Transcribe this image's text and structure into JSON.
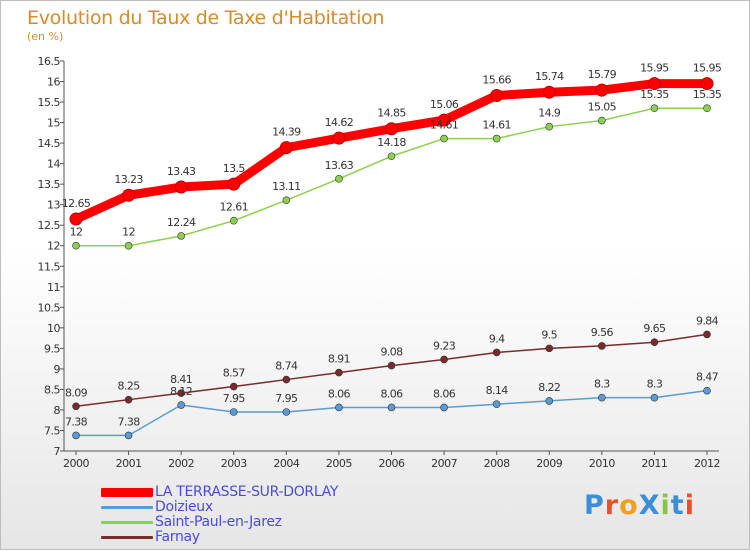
{
  "title": "Evolution du Taux de Taxe d'Habitation",
  "subtitle": "(en %)",
  "logo_text": "ProXiti",
  "chart_data": {
    "type": "line",
    "x": [
      2000,
      2001,
      2002,
      2003,
      2004,
      2005,
      2006,
      2007,
      2008,
      2009,
      2010,
      2011,
      2012
    ],
    "xlabel": "",
    "ylabel": "",
    "ylim": [
      7,
      16.5
    ],
    "yticks": [
      "7",
      "7.5",
      "8",
      "8.5",
      "9",
      "9.5",
      "10",
      "10.5",
      "11",
      "11.5",
      "12",
      "12.5",
      "13",
      "13.5",
      "14",
      "14.5",
      "15",
      "15.5",
      "16",
      "16.5"
    ],
    "grid": false,
    "legend_position": "bottom-left",
    "series": [
      {
        "name": "LA TERRASSE-SUR-DORLAY",
        "color": "#ff0000",
        "values": [
          12.65,
          13.23,
          13.43,
          13.5,
          14.39,
          14.62,
          14.85,
          15.06,
          15.66,
          15.74,
          15.79,
          15.95,
          15.95
        ],
        "labels": [
          "12.65",
          "13.23",
          "13.43",
          "13.5",
          "14.39",
          "14.62",
          "14.85",
          "15.06",
          "15.66",
          "15.74",
          "15.79",
          "15.95",
          "15.95"
        ]
      },
      {
        "name": "Doizieux",
        "color": "#5b9bd5",
        "values": [
          7.38,
          7.38,
          8.12,
          7.95,
          7.95,
          8.06,
          8.06,
          8.06,
          8.14,
          8.22,
          8.3,
          8.3,
          8.47
        ],
        "labels": [
          "7.38",
          "7.38",
          "8.12",
          "7.95",
          "7.95",
          "8.06",
          "8.06",
          "8.06",
          "8.14",
          "8.22",
          "8.3",
          "8.3",
          "8.47"
        ]
      },
      {
        "name": "Saint-Paul-en-Jarez",
        "color": "#8bd14d",
        "values": [
          12,
          12,
          12.24,
          12.61,
          13.11,
          13.63,
          14.18,
          14.61,
          14.61,
          14.9,
          15.05,
          15.35,
          15.35
        ],
        "labels": [
          "12",
          "12",
          "12.24",
          "12.61",
          "13.11",
          "13.63",
          "14.18",
          "14.61",
          "14.61",
          "14.9",
          "15.05",
          "15.35",
          "15.35"
        ]
      },
      {
        "name": "Farnay",
        "color": "#7a2a2a",
        "values": [
          8.09,
          8.25,
          8.41,
          8.57,
          8.74,
          8.91,
          9.08,
          9.23,
          9.4,
          9.5,
          9.56,
          9.65,
          9.84
        ],
        "labels": [
          "8.09",
          "8.25",
          "8.41",
          "8.57",
          "8.74",
          "8.91",
          "9.08",
          "9.23",
          "9.4",
          "9.5",
          "9.56",
          "9.65",
          "9.84"
        ]
      }
    ]
  }
}
